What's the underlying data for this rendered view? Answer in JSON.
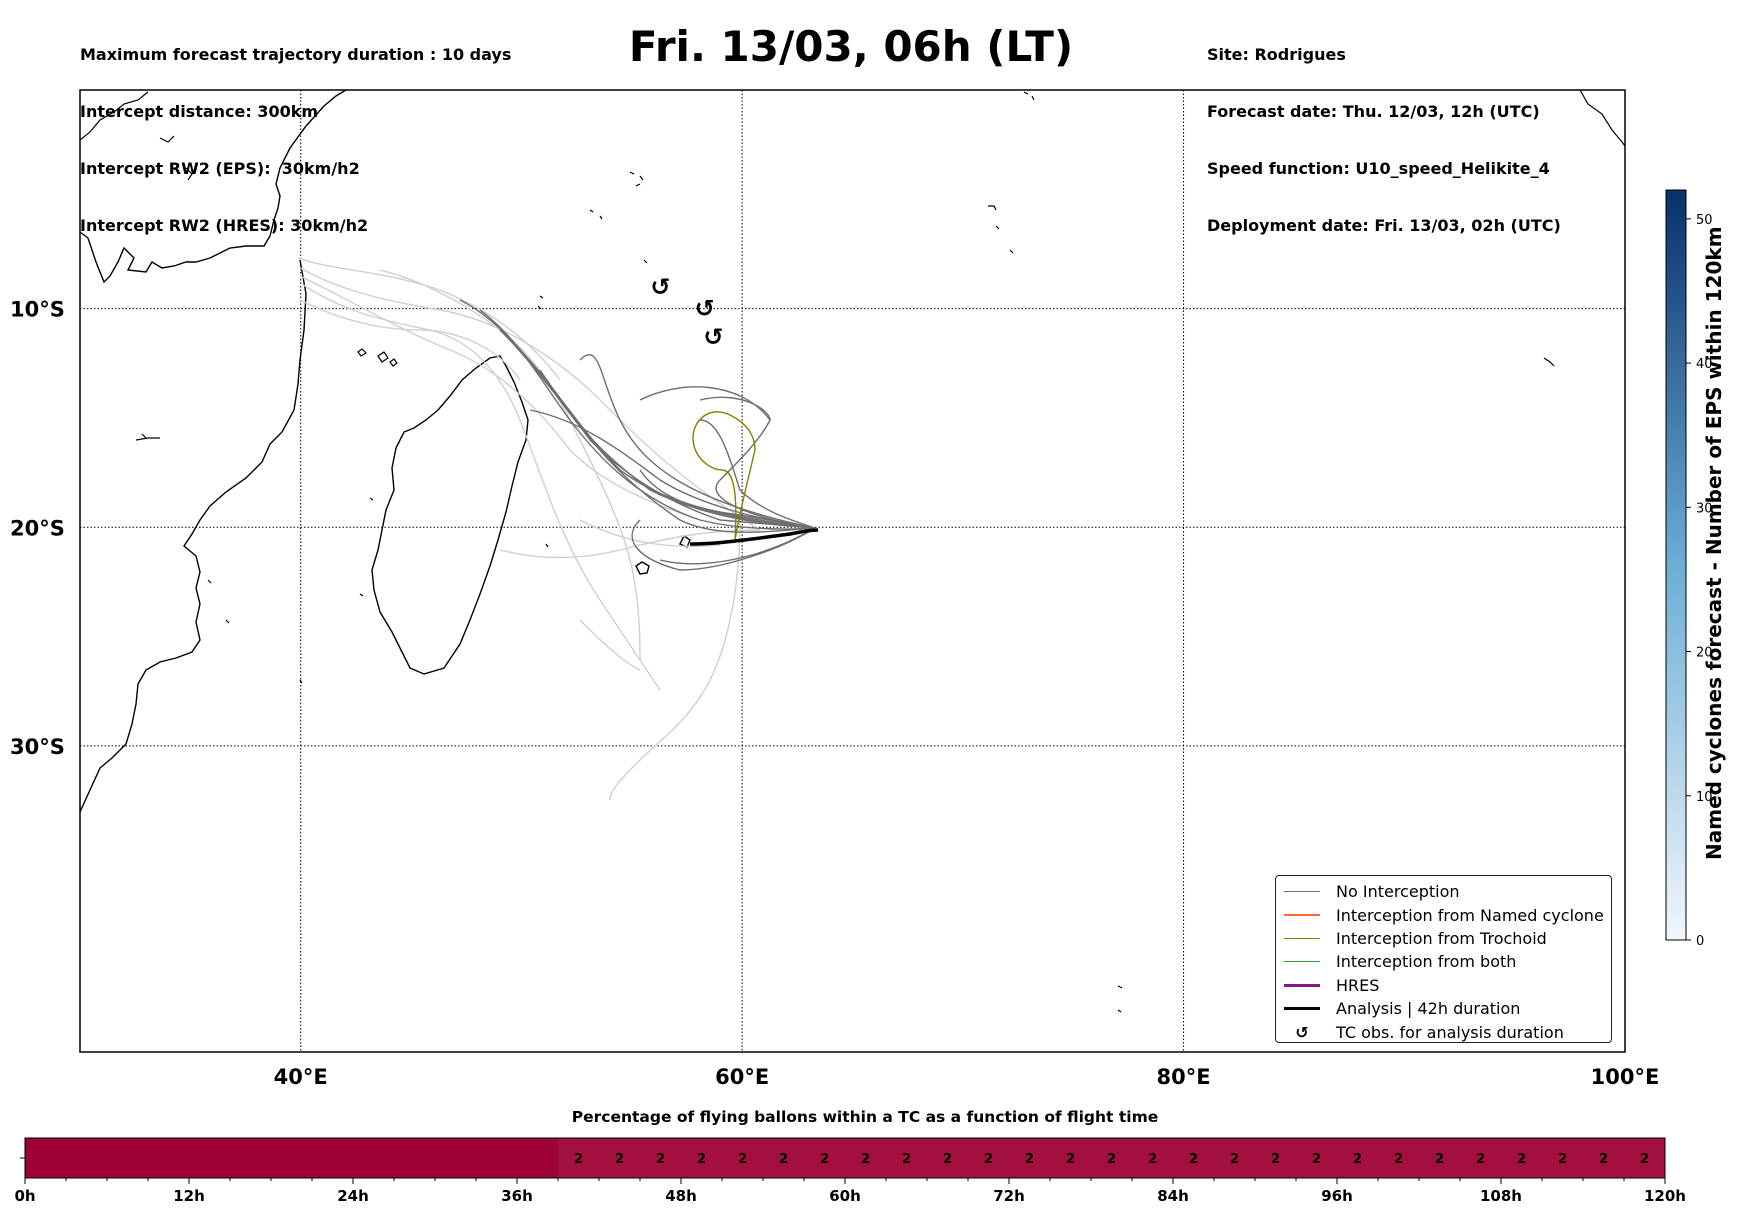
{
  "header": {
    "left_lines": [
      "Maximum forecast trajectory duration : 10 days",
      "Intercept distance: 300km",
      "Intercept RW2 (EPS):  30km/h2",
      "Intercept RW2 (HRES): 30km/h2"
    ],
    "title": "Fri. 13/03, 06h (LT)",
    "right_lines": [
      "Site: Rodrigues",
      "Forecast date: Thu. 12/03, 12h (UTC)",
      "Speed function: U10_speed_Helikite_4",
      "Deployment date: Fri. 13/03, 02h (UTC)"
    ]
  },
  "map": {
    "lon_range": [
      30,
      100
    ],
    "lat_range": [
      0,
      -44
    ],
    "lat_ticks": [
      {
        "value": -10,
        "label": "10°S"
      },
      {
        "value": -20,
        "label": "20°S"
      },
      {
        "value": -30,
        "label": "30°S"
      }
    ],
    "lon_ticks": [
      {
        "value": 40,
        "label": "40°E"
      },
      {
        "value": 60,
        "label": "60°E"
      },
      {
        "value": 80,
        "label": "80°E"
      },
      {
        "value": 100,
        "label": "100°E"
      }
    ],
    "tc_obs_symbol": "↺",
    "tc_obs_points": [
      [
        56.3,
        -9.0
      ],
      [
        58.3,
        -10.0
      ],
      [
        58.7,
        -11.3
      ]
    ],
    "colors": {
      "no_interception": "#6e6e6e",
      "light_track": "#cfcfcf",
      "named_cyclone": "#ff6a33",
      "trochoid": "#808000",
      "both": "#2ca02c",
      "hres": "#8b168b",
      "analysis": "#000000"
    }
  },
  "legend": {
    "items": [
      {
        "label": "No Interception",
        "kind": "line",
        "color": "#6e6e6e",
        "width": 1.2
      },
      {
        "label": "Interception from Named cyclone",
        "kind": "line",
        "color": "#ff6a33",
        "width": 1.2
      },
      {
        "label": "Interception from Trochoid",
        "kind": "line",
        "color": "#808000",
        "width": 1.2
      },
      {
        "label": "Interception from both",
        "kind": "line",
        "color": "#2ca02c",
        "width": 1.2
      },
      {
        "label": "HRES",
        "kind": "line",
        "color": "#8b168b",
        "width": 3.5
      },
      {
        "label": "Analysis | 42h duration",
        "kind": "line",
        "color": "#000000",
        "width": 3.5
      },
      {
        "label": "TC obs. for analysis duration",
        "kind": "glyph",
        "glyph": "↺"
      }
    ]
  },
  "colorbar": {
    "label": "Named cyclones forecast - Number of EPS within 120km",
    "range": [
      0,
      52
    ],
    "ticks": [
      0,
      10,
      20,
      30,
      40,
      50
    ],
    "color_low": "#f1f6fc",
    "color_high": "#08306b"
  },
  "strip": {
    "title": "Percentage of flying ballons within a TC as a function of flight time",
    "hours_range": [
      0,
      120
    ],
    "step_hours": 3,
    "labeled_start_hour": 39,
    "cell_value": "2",
    "dark_color": "#9e003a",
    "cell_color": "#a3103f",
    "tick_labels": [
      "0h",
      "12h",
      "24h",
      "36h",
      "48h",
      "60h",
      "72h",
      "84h",
      "96h",
      "108h",
      "120h"
    ]
  }
}
